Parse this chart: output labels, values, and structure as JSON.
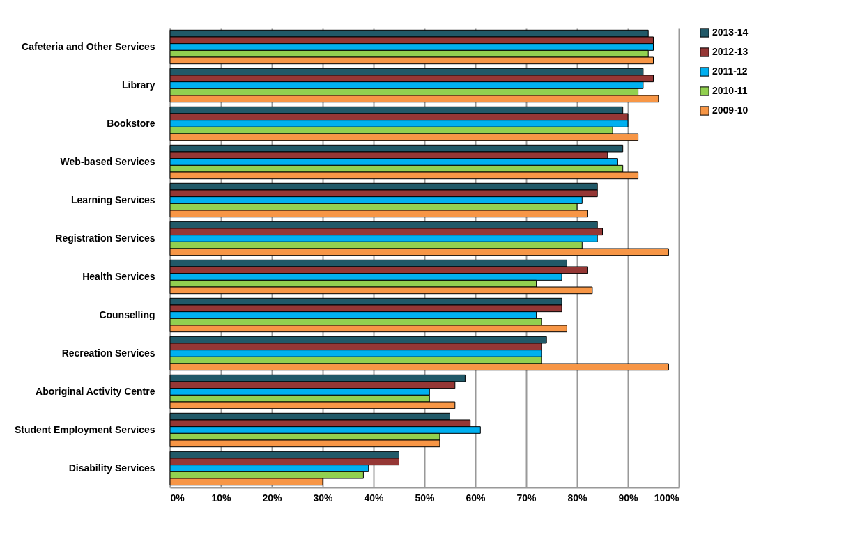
{
  "chart_data": {
    "type": "bar",
    "orientation": "horizontal",
    "categories": [
      "Cafeteria and Other Services",
      "Library",
      "Bookstore",
      "Web-based Services",
      "Learning Services",
      "Registration Services",
      "Health Services",
      "Counselling",
      "Recreation Services",
      "Aboriginal Activity Centre",
      "Student Employment Services",
      "Disability Services"
    ],
    "series": [
      {
        "name": "2013-14",
        "color": "#215968",
        "values": [
          94,
          93,
          89,
          89,
          84,
          84,
          78,
          77,
          74,
          58,
          55,
          45
        ]
      },
      {
        "name": "2012-13",
        "color": "#953735",
        "values": [
          95,
          95,
          90,
          86,
          84,
          85,
          82,
          77,
          73,
          56,
          59,
          45
        ]
      },
      {
        "name": "2011-12",
        "color": "#00b0f0",
        "values": [
          95,
          93,
          90,
          88,
          81,
          84,
          77,
          72,
          73,
          51,
          61,
          39
        ]
      },
      {
        "name": "2010-11",
        "color": "#92d050",
        "values": [
          94,
          92,
          87,
          89,
          80,
          81,
          72,
          73,
          73,
          51,
          53,
          38
        ]
      },
      {
        "name": "2009-10",
        "color": "#f79646",
        "values": [
          95,
          96,
          92,
          92,
          82,
          98,
          83,
          78,
          98,
          56,
          53,
          30
        ]
      }
    ],
    "xlim": [
      0,
      100
    ],
    "xticks": [
      {
        "value": 0,
        "label": "0%"
      },
      {
        "value": 10,
        "label": "10%"
      },
      {
        "value": 20,
        "label": "20%"
      },
      {
        "value": 30,
        "label": "30%"
      },
      {
        "value": 40,
        "label": "40%"
      },
      {
        "value": 50,
        "label": "50%"
      },
      {
        "value": 60,
        "label": "60%"
      },
      {
        "value": 70,
        "label": "70%"
      },
      {
        "value": 80,
        "label": "80%"
      },
      {
        "value": 90,
        "label": "90%"
      },
      {
        "value": 100,
        "label": "100%"
      }
    ],
    "grid": "x",
    "legend": "right"
  }
}
